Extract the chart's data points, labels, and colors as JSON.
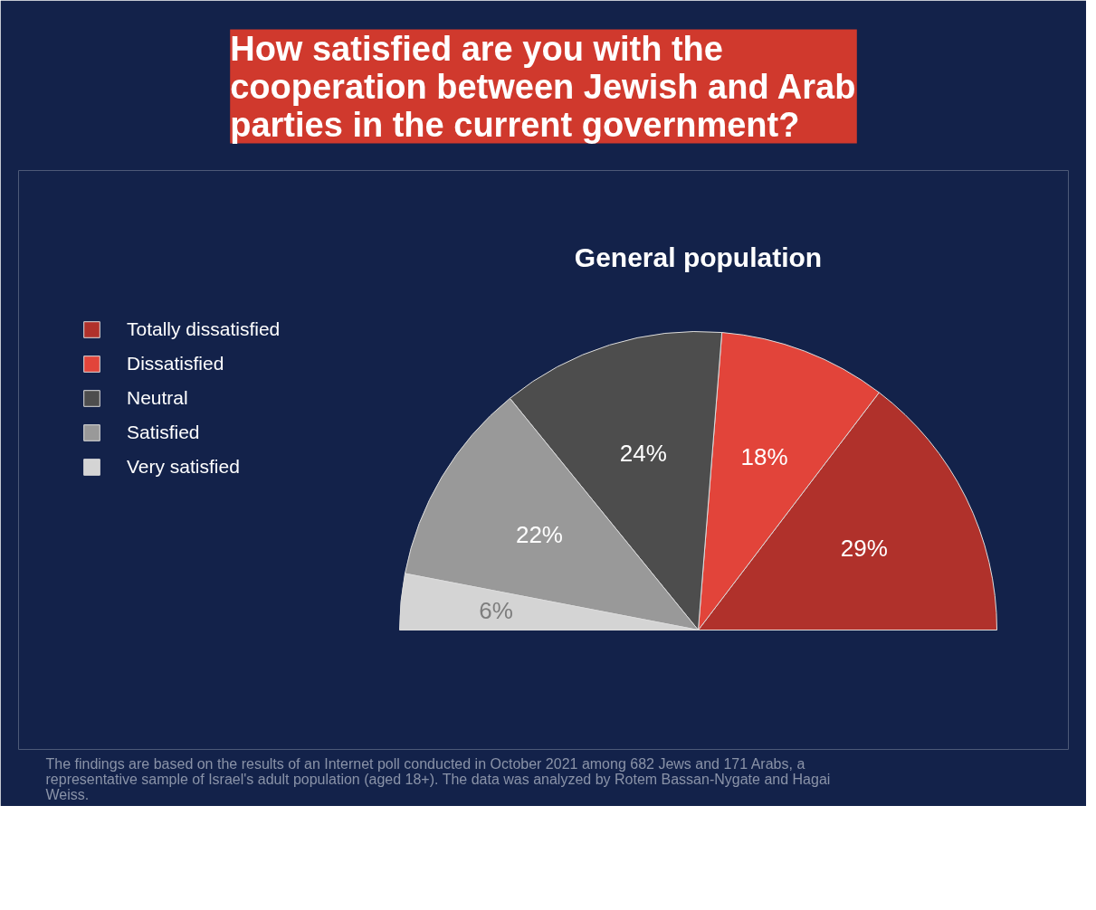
{
  "chart_data": {
    "type": "pie",
    "title": "How satisfied are you with the cooperation between Jewish and Arab parties in the current government?",
    "subtitle": "General population",
    "categories": [
      "Totally dissatisfied",
      "Dissatisfied",
      "Neutral",
      "Satisfied",
      "Very satisfied"
    ],
    "values": [
      29,
      18,
      24,
      22,
      6
    ],
    "value_labels": [
      "29%",
      "18%",
      "24%",
      "22%",
      "6%"
    ],
    "colors": [
      "#b0312b",
      "#e2443a",
      "#4d4d4d",
      "#999999",
      "#d4d4d4"
    ],
    "legend": "left",
    "annotations": [
      "The findings are based on the results of an Internet poll conducted in October 2021 among 682 Jews and 171 Arabs, a representative sample of Israel's adult population (aged 18+). The data was analyzed by Rotem Bassan-Nygate and Hagai Weiss."
    ]
  }
}
